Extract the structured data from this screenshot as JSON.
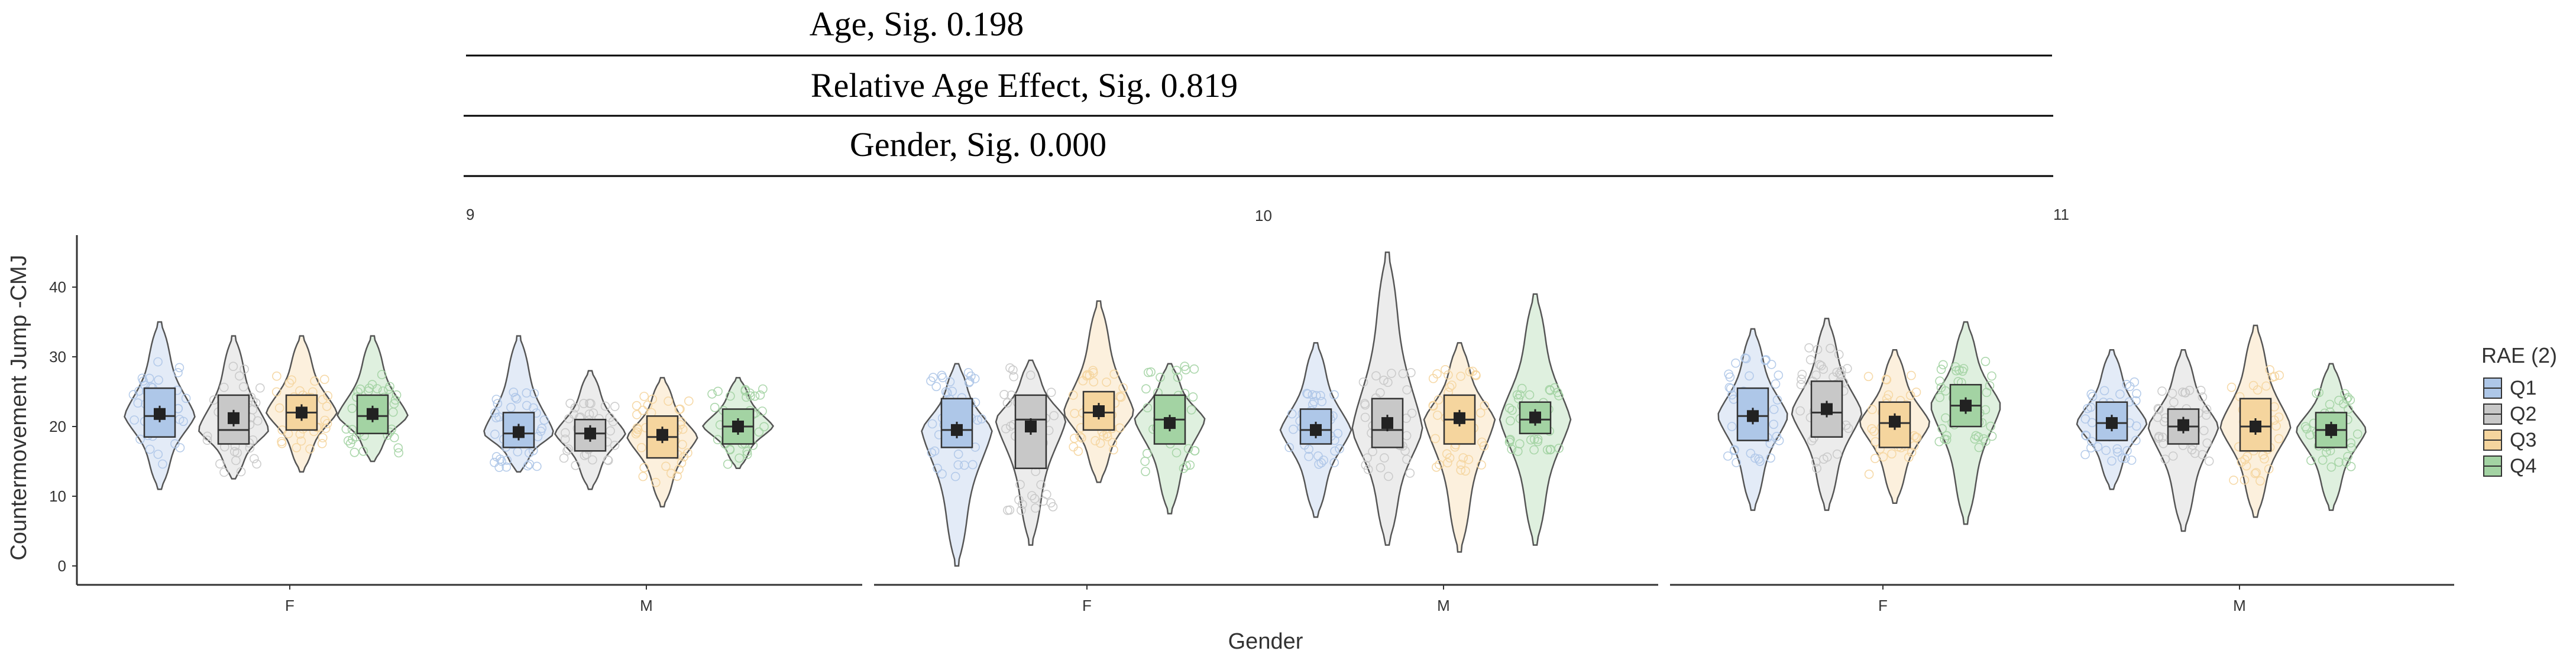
{
  "chart_data": {
    "type": "violin",
    "significance_lines": [
      {
        "label": "Age, Sig. 0.198"
      },
      {
        "label": "Relative Age Effect, Sig. 0.819"
      },
      {
        "label": "Gender, Sig. 0.000"
      }
    ],
    "ylabel": "Countermovement Jump -CMJ",
    "xlabel": "Gender",
    "ylim": [
      -3,
      46
    ],
    "yticks": [
      "0",
      "10",
      "20",
      "30",
      "40"
    ],
    "legend": {
      "title": "RAE (2)",
      "entries": [
        "Q1",
        "Q2",
        "Q3",
        "Q4"
      ],
      "position": "right"
    },
    "colors": {
      "Q1": "#aec7e8",
      "Q2": "#c8c8c8",
      "Q3": "#f5d59e",
      "Q4": "#a3d3a3"
    },
    "panels": [
      {
        "facet": "9",
        "groups": [
          {
            "gender": "F",
            "quartiles": [
              {
                "q": "Q1",
                "min": 11,
                "max": 35,
                "q1": 18.5,
                "median": 21.5,
                "q3": 25.5,
                "mean": 21.8
              },
              {
                "q": "Q2",
                "min": 12.5,
                "max": 33,
                "q1": 17.5,
                "median": 19.5,
                "q3": 24.5,
                "mean": 21.2
              },
              {
                "q": "Q3",
                "min": 13.5,
                "max": 33,
                "q1": 19.5,
                "median": 22,
                "q3": 24.5,
                "mean": 22
              },
              {
                "q": "Q4",
                "min": 15,
                "max": 33,
                "q1": 19,
                "median": 21.5,
                "q3": 24.5,
                "mean": 21.8
              }
            ]
          },
          {
            "gender": "M",
            "quartiles": [
              {
                "q": "Q1",
                "min": 13.5,
                "max": 33,
                "q1": 17,
                "median": 19,
                "q3": 22,
                "mean": 19.2
              },
              {
                "q": "Q2",
                "min": 11,
                "max": 28,
                "q1": 16.5,
                "median": 19,
                "q3": 21,
                "mean": 19
              },
              {
                "q": "Q3",
                "min": 8.5,
                "max": 27,
                "q1": 15.5,
                "median": 18.5,
                "q3": 21.5,
                "mean": 18.8
              },
              {
                "q": "Q4",
                "min": 14,
                "max": 27,
                "q1": 17.5,
                "median": 20,
                "q3": 22.5,
                "mean": 20
              }
            ]
          }
        ]
      },
      {
        "facet": "10",
        "groups": [
          {
            "gender": "F",
            "quartiles": [
              {
                "q": "Q1",
                "min": 0,
                "max": 29,
                "q1": 17,
                "median": 19.5,
                "q3": 24,
                "mean": 19.5
              },
              {
                "q": "Q2",
                "min": 3,
                "max": 29.5,
                "q1": 14,
                "median": 21,
                "q3": 24.5,
                "mean": 20
              },
              {
                "q": "Q3",
                "min": 12,
                "max": 38,
                "q1": 19.5,
                "median": 22,
                "q3": 25,
                "mean": 22.2
              },
              {
                "q": "Q4",
                "min": 7.5,
                "max": 29,
                "q1": 17.5,
                "median": 21,
                "q3": 24.5,
                "mean": 20.5
              }
            ]
          },
          {
            "gender": "M",
            "quartiles": [
              {
                "q": "Q1",
                "min": 7,
                "max": 32,
                "q1": 17.5,
                "median": 19.5,
                "q3": 22.5,
                "mean": 19.5
              },
              {
                "q": "Q2",
                "min": 3,
                "max": 45,
                "q1": 17,
                "median": 19.5,
                "q3": 24,
                "mean": 20.5
              },
              {
                "q": "Q3",
                "min": 2,
                "max": 32,
                "q1": 17.5,
                "median": 21,
                "q3": 24.5,
                "mean": 21.2
              },
              {
                "q": "Q4",
                "min": 3,
                "max": 39,
                "q1": 19,
                "median": 21,
                "q3": 23.5,
                "mean": 21.3
              }
            ]
          }
        ]
      },
      {
        "facet": "11",
        "groups": [
          {
            "gender": "F",
            "quartiles": [
              {
                "q": "Q1",
                "min": 8,
                "max": 34,
                "q1": 18,
                "median": 21.5,
                "q3": 25.5,
                "mean": 21.5
              },
              {
                "q": "Q2",
                "min": 8,
                "max": 35.5,
                "q1": 18.5,
                "median": 22,
                "q3": 26.5,
                "mean": 22.5
              },
              {
                "q": "Q3",
                "min": 9,
                "max": 31,
                "q1": 17,
                "median": 20.5,
                "q3": 23.5,
                "mean": 20.7
              },
              {
                "q": "Q4",
                "min": 6,
                "max": 35,
                "q1": 20,
                "median": 23,
                "q3": 26,
                "mean": 23
              }
            ]
          },
          {
            "gender": "M",
            "quartiles": [
              {
                "q": "Q1",
                "min": 11,
                "max": 31,
                "q1": 18,
                "median": 20.5,
                "q3": 23.5,
                "mean": 20.5
              },
              {
                "q": "Q2",
                "min": 5,
                "max": 31,
                "q1": 17.5,
                "median": 20,
                "q3": 22.5,
                "mean": 20.2
              },
              {
                "q": "Q3",
                "min": 7,
                "max": 34.5,
                "q1": 16.5,
                "median": 20,
                "q3": 24,
                "mean": 20
              },
              {
                "q": "Q4",
                "min": 8,
                "max": 29,
                "q1": 17,
                "median": 19.5,
                "q3": 22,
                "mean": 19.5
              }
            ]
          }
        ]
      }
    ]
  }
}
